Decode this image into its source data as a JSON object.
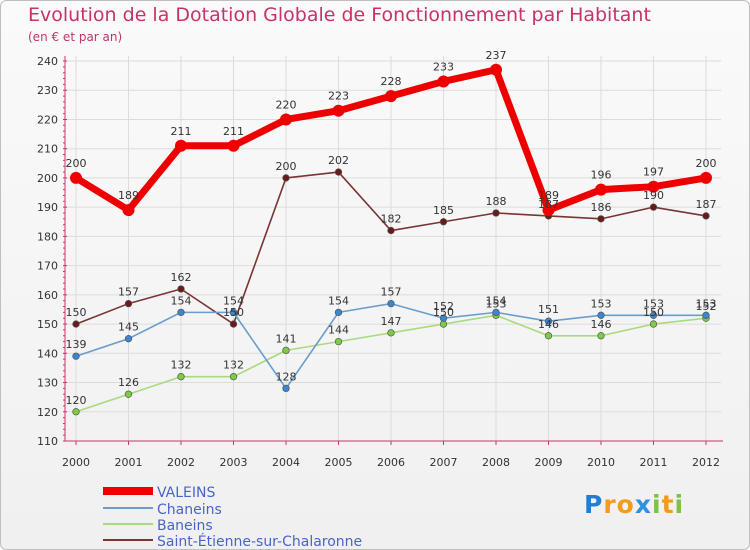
{
  "header": {
    "title": "Evolution de la Dotation Globale de Fonctionnement par Habitant",
    "subtitle": "(en € et par an)"
  },
  "logo": {
    "p": "P",
    "r": "r",
    "o": "o",
    "x": "x",
    "i1": "i",
    "t": "t",
    "i2": "i"
  },
  "chart_data": {
    "type": "line",
    "title": "Evolution de la Dotation Globale de Fonctionnement par Habitant",
    "subtitle": "(en € et par an)",
    "xlabel": "",
    "ylabel": "",
    "ylim": [
      110,
      240
    ],
    "yticks": [
      110,
      120,
      130,
      140,
      150,
      160,
      170,
      180,
      190,
      200,
      210,
      220,
      230,
      240
    ],
    "grid": true,
    "legend_position": "bottom-left",
    "categories": [
      "2000",
      "2001",
      "2002",
      "2003",
      "2004",
      "2005",
      "2006",
      "2007",
      "2008",
      "2009",
      "2010",
      "2011",
      "2012"
    ],
    "series": [
      {
        "name": "VALEINS",
        "color": "#ee0000",
        "marker": "#ee0000",
        "values": [
          200,
          189,
          211,
          211,
          220,
          223,
          228,
          233,
          237,
          189,
          196,
          197,
          200
        ]
      },
      {
        "name": "Chaneins",
        "color": "#6b9dcc",
        "marker": "#3a86d1",
        "values": [
          139,
          145,
          154,
          154,
          128,
          154,
          157,
          152,
          154,
          151,
          153,
          153,
          153
        ]
      },
      {
        "name": "Baneins",
        "color": "#a9da7f",
        "marker": "#7ccc44",
        "values": [
          120,
          126,
          132,
          132,
          141,
          144,
          147,
          150,
          153,
          146,
          146,
          150,
          152
        ]
      },
      {
        "name": "Saint-Étienne-sur-Chalaronne",
        "color": "#7a3434",
        "marker": "#6b1a1a",
        "values": [
          150,
          157,
          162,
          150,
          200,
          202,
          182,
          185,
          188,
          187,
          186,
          190,
          187
        ]
      }
    ]
  }
}
